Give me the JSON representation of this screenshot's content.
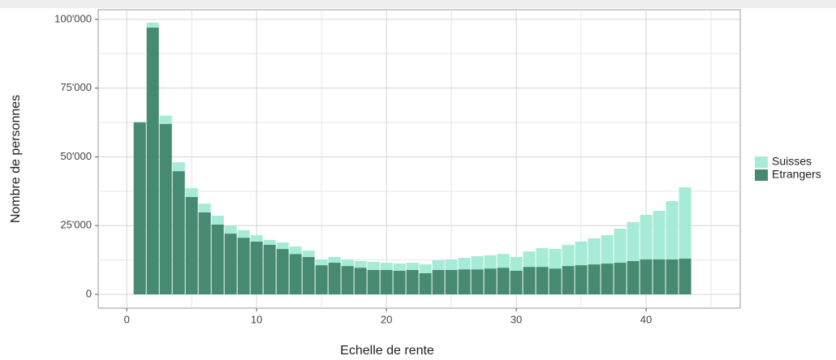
{
  "chart_data": {
    "type": "stacked_bar",
    "xlabel": "Echelle de rente",
    "ylabel": "Nombre de personnes",
    "x": [
      1,
      2,
      3,
      4,
      5,
      6,
      7,
      8,
      9,
      10,
      11,
      12,
      13,
      14,
      15,
      16,
      17,
      18,
      19,
      20,
      21,
      22,
      23,
      24,
      25,
      26,
      27,
      28,
      29,
      30,
      31,
      32,
      33,
      34,
      35,
      36,
      37,
      38,
      39,
      40,
      41,
      42,
      43
    ],
    "series": [
      {
        "name": "Suisses",
        "color": "#a6ebd6",
        "values": [
          300,
          1800,
          3000,
          3200,
          3200,
          3200,
          3200,
          3000,
          2700,
          2300,
          1800,
          2400,
          2700,
          2300,
          2100,
          2100,
          2400,
          2400,
          2900,
          2600,
          2600,
          2600,
          3200,
          3500,
          3800,
          4200,
          4800,
          4800,
          5000,
          5000,
          5600,
          6800,
          7100,
          7700,
          8600,
          9500,
          10300,
          12400,
          14200,
          16200,
          17700,
          21200,
          25900
        ]
      },
      {
        "name": "Etrangers",
        "color": "#468a72",
        "values": [
          62500,
          97000,
          62000,
          44800,
          35400,
          29800,
          25400,
          22100,
          20600,
          19200,
          18000,
          16500,
          14700,
          13600,
          10600,
          11500,
          10300,
          9700,
          8900,
          8900,
          8600,
          8900,
          7700,
          8900,
          8900,
          9100,
          9100,
          9400,
          9700,
          8600,
          10000,
          10000,
          9400,
          10300,
          10600,
          10900,
          11200,
          11500,
          12100,
          12700,
          12700,
          12700,
          13000
        ]
      }
    ],
    "xlim": [
      -2.2,
      47.25
    ],
    "xticks": [
      0,
      10,
      20,
      30,
      40
    ],
    "ylim": [
      -5000,
      103500
    ],
    "yticks": [
      0,
      {
        "value": 25000,
        "label": "25'000"
      },
      {
        "value": 50000,
        "label": "50'000"
      },
      {
        "value": 75000,
        "label": "75'000"
      },
      {
        "value": 100000,
        "label": "100'000"
      }
    ],
    "grid": true,
    "legend": "right"
  }
}
